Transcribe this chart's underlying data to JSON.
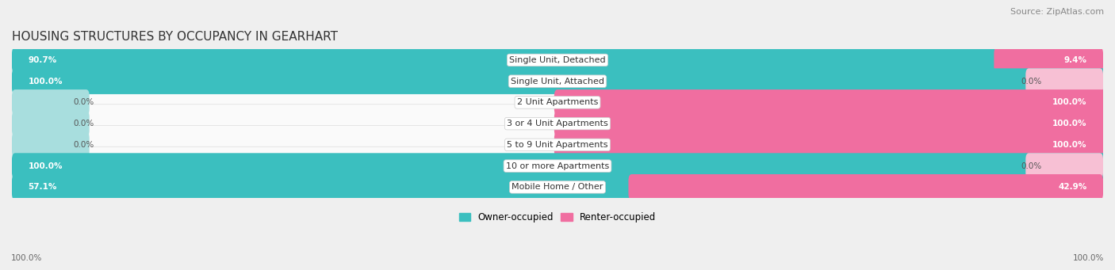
{
  "title": "HOUSING STRUCTURES BY OCCUPANCY IN GEARHART",
  "source": "Source: ZipAtlas.com",
  "categories": [
    "Single Unit, Detached",
    "Single Unit, Attached",
    "2 Unit Apartments",
    "3 or 4 Unit Apartments",
    "5 to 9 Unit Apartments",
    "10 or more Apartments",
    "Mobile Home / Other"
  ],
  "owner_pct": [
    90.7,
    100.0,
    0.0,
    0.0,
    0.0,
    100.0,
    57.1
  ],
  "renter_pct": [
    9.4,
    0.0,
    100.0,
    100.0,
    100.0,
    0.0,
    42.9
  ],
  "owner_color": "#3BBFBF",
  "renter_color": "#F06EA0",
  "owner_color_light": "#A8DEDE",
  "renter_color_light": "#F7C0D4",
  "bg_color": "#EFEFEF",
  "row_bg_color": "#FAFAFA",
  "row_border_color": "#DDDDDD",
  "title_fontsize": 11,
  "source_fontsize": 8,
  "label_fontsize": 8,
  "bar_label_fontsize": 7.5,
  "legend_fontsize": 8.5,
  "axis_label_fontsize": 7.5
}
